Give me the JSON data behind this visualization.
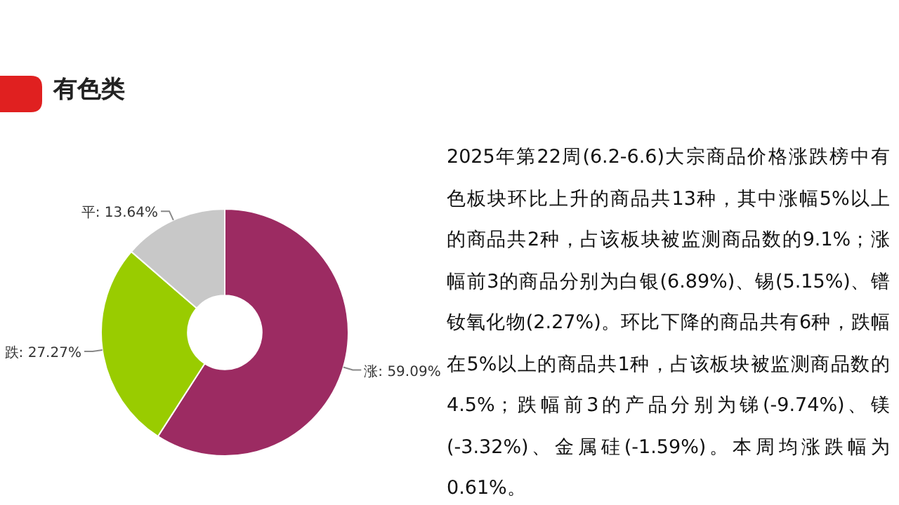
{
  "chart_data": {
    "type": "donut",
    "title": "有色类",
    "categories": [
      "涨",
      "跌",
      "平"
    ],
    "values": [
      59.09,
      27.27,
      13.64
    ],
    "value_labels": [
      "59.09%",
      "27.27%",
      "13.64%"
    ],
    "colors": [
      "#9c2b62",
      "#99cc00",
      "#c8c8c8"
    ],
    "annotations": [
      "2025年第22周(6.2-6.6)大宗商品价格涨跌榜中有色板块环比上升的商品共13种，其中涨幅5%以上的商品共2种，占该板块被监测商品数的9.1%；涨幅前3的商品分别为白银(6.89%)、锡(5.15%)、镨钕氧化物(2.27%)。环比下降的商品共有6种，跌幅在5%以上的商品共1种，占该板块被监测商品数的4.5%；跌幅前3的产品分别为锑(-9.74%)、镁(-3.32%)、金属硅(-1.59%)。本周均涨跌幅为0.61%。"
    ]
  }
}
